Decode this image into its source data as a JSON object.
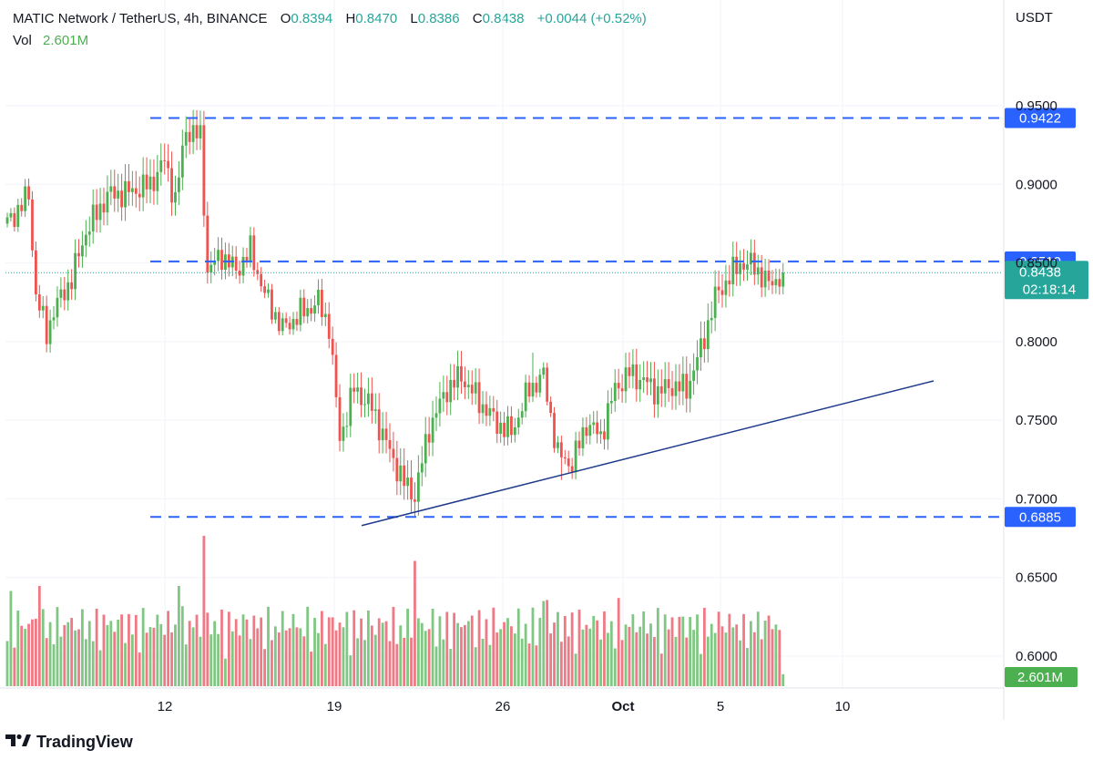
{
  "header": {
    "symbol": "MATIC Network / TetherUS, 4h, BINANCE",
    "o_label": "O",
    "o_value": "0.8394",
    "h_label": "H",
    "h_value": "0.8470",
    "l_label": "L",
    "l_value": "0.8386",
    "c_label": "C",
    "c_value": "0.8438",
    "change": "+0.0044 (+0.52%)",
    "vol_label": "Vol",
    "vol_value": "2.601M"
  },
  "footer": {
    "brand": "TradingView",
    "logo_icon": "tradingview-logo-icon"
  },
  "colors": {
    "up": "#4caf50",
    "down": "#ef5350",
    "vol_up": "#81c784",
    "vol_down": "#ef7a85",
    "level_line": "#2962ff",
    "trend_line": "#1e3a8a",
    "last_price": "#26a69a"
  },
  "chart_data": {
    "type": "candlestick",
    "timeframe": "4h",
    "currency": "USDT",
    "ylim": [
      0.58,
      1.0
    ],
    "y_ticks": [
      "0.9500",
      "0.9000",
      "0.8500",
      "0.8000",
      "0.7500",
      "0.7000",
      "0.6500",
      "0.6000"
    ],
    "y_tick_values": [
      0.95,
      0.9,
      0.85,
      0.8,
      0.75,
      0.7,
      0.65,
      0.6
    ],
    "x_ticks": [
      "12",
      "19",
      "26",
      "Oct",
      "5",
      "10"
    ],
    "grid": true,
    "levels": [
      {
        "label": "0.9422",
        "value": 0.9422
      },
      {
        "label": "0.8510",
        "value": 0.851
      },
      {
        "label": "0.6885",
        "value": 0.6885
      }
    ],
    "trendline": [
      {
        "x": "Sep 20",
        "y": 0.683
      },
      {
        "x": "Oct 7",
        "y": 0.775
      }
    ],
    "last_price": {
      "value": 0.8438,
      "label": "0.8438",
      "countdown": "02:18:14"
    },
    "volume": {
      "last_label": "2.601M"
    },
    "anchors": [
      {
        "i": 0,
        "c": 0.875
      },
      {
        "i": 6,
        "c": 0.893
      },
      {
        "i": 8,
        "c": 0.83
      },
      {
        "i": 11,
        "c": 0.805
      },
      {
        "i": 13,
        "c": 0.82
      },
      {
        "i": 18,
        "c": 0.84
      },
      {
        "i": 22,
        "c": 0.87
      },
      {
        "i": 28,
        "c": 0.893
      },
      {
        "i": 34,
        "c": 0.895
      },
      {
        "i": 40,
        "c": 0.9
      },
      {
        "i": 44,
        "c": 0.915
      },
      {
        "i": 47,
        "c": 0.89
      },
      {
        "i": 50,
        "c": 0.935
      },
      {
        "i": 54,
        "c": 0.93
      },
      {
        "i": 56,
        "c": 0.845
      },
      {
        "i": 60,
        "c": 0.855
      },
      {
        "i": 64,
        "c": 0.845
      },
      {
        "i": 68,
        "c": 0.858
      },
      {
        "i": 72,
        "c": 0.83
      },
      {
        "i": 77,
        "c": 0.808
      },
      {
        "i": 82,
        "c": 0.818
      },
      {
        "i": 87,
        "c": 0.825
      },
      {
        "i": 90,
        "c": 0.81
      },
      {
        "i": 93,
        "c": 0.738
      },
      {
        "i": 97,
        "c": 0.77
      },
      {
        "i": 102,
        "c": 0.758
      },
      {
        "i": 107,
        "c": 0.73
      },
      {
        "i": 111,
        "c": 0.71
      },
      {
        "i": 114,
        "c": 0.702
      },
      {
        "i": 118,
        "c": 0.745
      },
      {
        "i": 123,
        "c": 0.77
      },
      {
        "i": 127,
        "c": 0.778
      },
      {
        "i": 132,
        "c": 0.762
      },
      {
        "i": 137,
        "c": 0.748
      },
      {
        "i": 141,
        "c": 0.742
      },
      {
        "i": 146,
        "c": 0.77
      },
      {
        "i": 150,
        "c": 0.778
      },
      {
        "i": 154,
        "c": 0.728
      },
      {
        "i": 158,
        "c": 0.722
      },
      {
        "i": 162,
        "c": 0.748
      },
      {
        "i": 166,
        "c": 0.74
      },
      {
        "i": 170,
        "c": 0.77
      },
      {
        "i": 174,
        "c": 0.78
      },
      {
        "i": 178,
        "c": 0.775
      },
      {
        "i": 182,
        "c": 0.768
      },
      {
        "i": 186,
        "c": 0.772
      },
      {
        "i": 190,
        "c": 0.77
      },
      {
        "i": 194,
        "c": 0.795
      },
      {
        "i": 198,
        "c": 0.828
      },
      {
        "i": 201,
        "c": 0.838
      },
      {
        "i": 205,
        "c": 0.85
      },
      {
        "i": 209,
        "c": 0.848
      },
      {
        "i": 213,
        "c": 0.836
      },
      {
        "i": 217,
        "c": 0.8438
      }
    ]
  }
}
